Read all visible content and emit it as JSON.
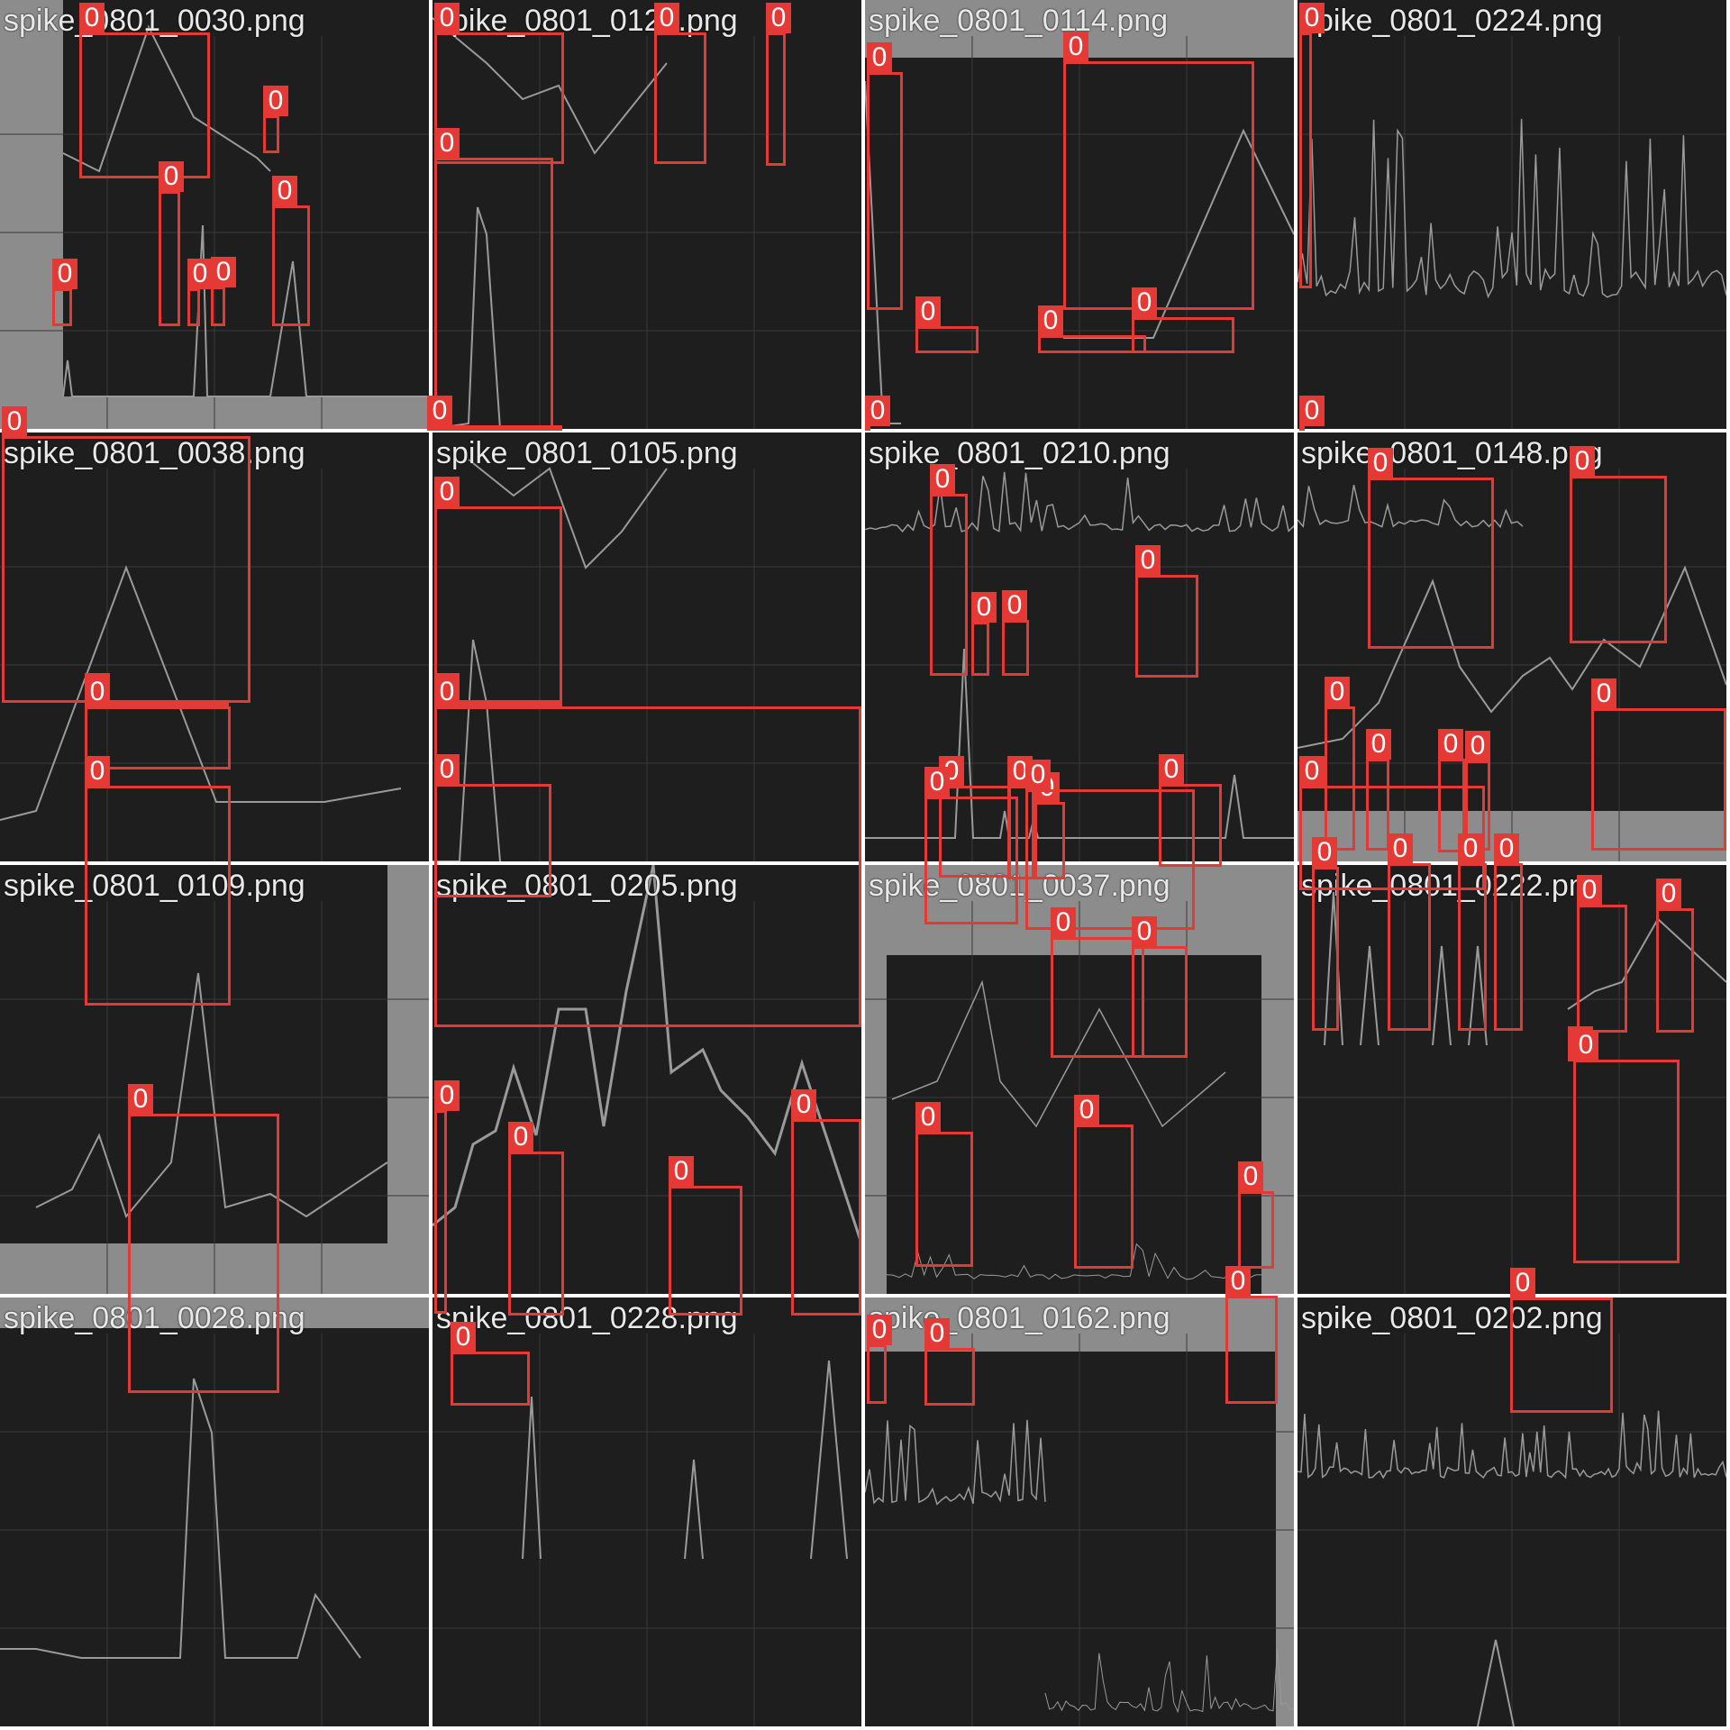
{
  "colors": {
    "box": "#e53935",
    "panel": "#1e1e1e",
    "trace": "#9a9a9a",
    "frame": "#8c8c8c",
    "grid": "#3a3a3a"
  },
  "tiles": [
    {
      "file": "spike_0801_0030.png",
      "labels": [
        "0",
        "0",
        "0",
        "0",
        "0",
        "0",
        "0"
      ]
    },
    {
      "file": "spike_0801_0122.png",
      "labels": [
        "0",
        "0",
        "0",
        "0",
        "0"
      ]
    },
    {
      "file": "spike_0801_0114.png",
      "labels": [
        "0",
        "0",
        "0",
        "0",
        "0",
        "0",
        "0",
        "0"
      ]
    },
    {
      "file": "spike_0801_0224.png",
      "labels": [
        "0",
        "0"
      ]
    },
    {
      "file": "spike_0801_0038.png",
      "labels": [
        "0",
        "0"
      ]
    },
    {
      "file": "spike_0801_0105.png",
      "labels": [
        "0",
        "0",
        "0"
      ]
    },
    {
      "file": "spike_0801_0210.png",
      "labels": [
        "0",
        "0",
        "0",
        "0",
        "0",
        "0",
        "0",
        "0"
      ]
    },
    {
      "file": "spike_0801_0148.png",
      "labels": [
        "0",
        "0",
        "0"
      ]
    },
    {
      "file": "spike_0801_0109.png",
      "labels": [
        "0",
        "0"
      ]
    },
    {
      "file": "spike_0801_0205.png",
      "labels": [
        "0"
      ]
    },
    {
      "file": "spike_0801_0037.png",
      "labels": [
        "0",
        "0",
        "0",
        "0"
      ]
    },
    {
      "file": "spike_0801_0222.png",
      "labels": [
        "0",
        "0",
        "0",
        "0",
        "0",
        "0",
        "0",
        "0",
        "0",
        "0",
        "0",
        "0"
      ]
    },
    {
      "file": "spike_0801_0028.png",
      "labels": [
        "0"
      ]
    },
    {
      "file": "spike_0801_0228.png",
      "labels": [
        "0",
        "0",
        "0",
        "0",
        "0"
      ]
    },
    {
      "file": "spike_0801_0162.png",
      "labels": [
        "0",
        "0",
        "0",
        "0",
        "0",
        "0"
      ]
    },
    {
      "file": "spike_0801_0202.png",
      "labels": [
        "0",
        "0"
      ]
    }
  ]
}
